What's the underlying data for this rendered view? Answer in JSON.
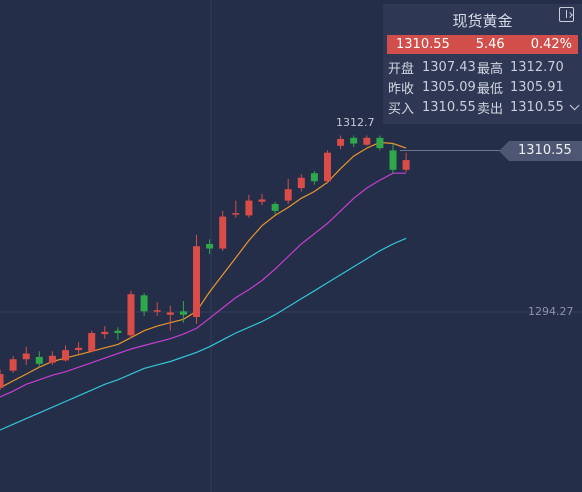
{
  "panel": {
    "title": "现货黄金",
    "price": "1310.55",
    "change": "5.46",
    "change_pct": "0.42%",
    "rows": [
      {
        "l1": "开盘",
        "v1": "1307.43",
        "l2": "最高",
        "v2": "1312.70"
      },
      {
        "l1": "昨收",
        "v1": "1305.09",
        "l2": "最低",
        "v2": "1305.91"
      },
      {
        "l1": "买入",
        "v1": "1310.55",
        "l2": "卖出",
        "v2": "1310.55"
      }
    ]
  },
  "price_tag": "1310.55",
  "axis_label": "1294.27",
  "high_label": "1312.7",
  "colors": {
    "background": "#252e48",
    "up": "#d94c47",
    "down": "#2ea84a",
    "ma_short": "#e8952f",
    "ma_mid": "#c63ed1",
    "ma_long": "#33c4d8",
    "grid": "#323c5a"
  },
  "chart_data": {
    "type": "candlestick",
    "title": "",
    "ylim": [
      1286.9,
      1314.5
    ],
    "y_tick": 1294.27,
    "current_price": 1310.55,
    "high_marker": 1312.7,
    "candles": [
      {
        "o": 1290.6,
        "c": 1291.8,
        "h": 1292.2,
        "l": 1290.4
      },
      {
        "o": 1292.1,
        "c": 1293.1,
        "h": 1293.4,
        "l": 1291.9
      },
      {
        "o": 1293.1,
        "c": 1293.6,
        "h": 1294.2,
        "l": 1292.6
      },
      {
        "o": 1293.3,
        "c": 1292.7,
        "h": 1293.8,
        "l": 1292.4
      },
      {
        "o": 1292.8,
        "c": 1293.4,
        "h": 1293.8,
        "l": 1292.6
      },
      {
        "o": 1293.0,
        "c": 1293.9,
        "h": 1294.3,
        "l": 1292.9
      },
      {
        "o": 1293.9,
        "c": 1294.1,
        "h": 1294.6,
        "l": 1293.6
      },
      {
        "o": 1293.8,
        "c": 1295.4,
        "h": 1295.6,
        "l": 1293.7
      },
      {
        "o": 1295.3,
        "c": 1295.5,
        "h": 1296.0,
        "l": 1294.9
      },
      {
        "o": 1295.6,
        "c": 1295.4,
        "h": 1295.9,
        "l": 1294.8
      },
      {
        "o": 1295.2,
        "c": 1298.8,
        "h": 1299.1,
        "l": 1295.0
      },
      {
        "o": 1298.7,
        "c": 1297.3,
        "h": 1298.9,
        "l": 1296.9
      },
      {
        "o": 1297.3,
        "c": 1297.4,
        "h": 1298.1,
        "l": 1296.9
      },
      {
        "o": 1297.0,
        "c": 1297.2,
        "h": 1297.8,
        "l": 1295.6
      },
      {
        "o": 1297.3,
        "c": 1297.0,
        "h": 1298.2,
        "l": 1296.3
      },
      {
        "o": 1296.8,
        "c": 1303.0,
        "h": 1304.0,
        "l": 1296.2
      },
      {
        "o": 1303.2,
        "c": 1302.8,
        "h": 1303.6,
        "l": 1302.3
      },
      {
        "o": 1302.8,
        "c": 1305.6,
        "h": 1306.1,
        "l": 1302.6
      },
      {
        "o": 1305.8,
        "c": 1305.9,
        "h": 1307.0,
        "l": 1305.5
      },
      {
        "o": 1305.7,
        "c": 1307.0,
        "h": 1307.5,
        "l": 1305.5
      },
      {
        "o": 1306.9,
        "c": 1307.1,
        "h": 1307.6,
        "l": 1306.6
      },
      {
        "o": 1306.7,
        "c": 1306.1,
        "h": 1306.9,
        "l": 1305.8
      },
      {
        "o": 1307.0,
        "c": 1308.0,
        "h": 1308.9,
        "l": 1306.7
      },
      {
        "o": 1308.1,
        "c": 1309.0,
        "h": 1309.3,
        "l": 1307.8
      },
      {
        "o": 1309.4,
        "c": 1308.7,
        "h": 1309.6,
        "l": 1308.4
      },
      {
        "o": 1308.7,
        "c": 1311.2,
        "h": 1311.4,
        "l": 1308.5
      },
      {
        "o": 1311.8,
        "c": 1312.4,
        "h": 1312.7,
        "l": 1311.5
      },
      {
        "o": 1312.5,
        "c": 1312.0,
        "h": 1312.7,
        "l": 1311.7
      },
      {
        "o": 1311.9,
        "c": 1312.5,
        "h": 1312.7,
        "l": 1311.8
      },
      {
        "o": 1312.5,
        "c": 1311.6,
        "h": 1312.7,
        "l": 1311.4
      },
      {
        "o": 1311.4,
        "c": 1309.7,
        "h": 1312.0,
        "l": 1309.4
      },
      {
        "o": 1309.7,
        "c": 1310.55,
        "h": 1311.2,
        "l": 1309.5
      }
    ],
    "ma_short": [
      1290.6,
      1291.2,
      1291.8,
      1292.4,
      1292.9,
      1293.2,
      1293.5,
      1293.8,
      1294.1,
      1294.4,
      1295.0,
      1295.6,
      1296.0,
      1296.3,
      1296.6,
      1297.3,
      1299.0,
      1300.5,
      1302.0,
      1303.5,
      1304.8,
      1305.7,
      1306.4,
      1307.2,
      1307.8,
      1308.6,
      1309.8,
      1310.9,
      1311.6,
      1312.1,
      1312.0,
      1311.6
    ],
    "ma_mid": [
      1289.8,
      1290.3,
      1290.9,
      1291.3,
      1291.7,
      1292.0,
      1292.4,
      1292.8,
      1293.2,
      1293.6,
      1294.0,
      1294.3,
      1294.6,
      1294.9,
      1295.3,
      1295.8,
      1296.7,
      1297.6,
      1298.5,
      1299.2,
      1300.0,
      1301.0,
      1302.1,
      1303.2,
      1304.1,
      1305.0,
      1306.1,
      1307.2,
      1308.1,
      1308.8,
      1309.4,
      1309.4
    ],
    "ma_long": [
      1286.9,
      1287.4,
      1287.9,
      1288.4,
      1288.9,
      1289.4,
      1289.9,
      1290.4,
      1290.9,
      1291.3,
      1291.8,
      1292.3,
      1292.6,
      1292.9,
      1293.3,
      1293.7,
      1294.2,
      1294.8,
      1295.4,
      1295.9,
      1296.4,
      1297.0,
      1297.7,
      1298.4,
      1299.1,
      1299.8,
      1300.5,
      1301.2,
      1301.9,
      1302.6,
      1303.2,
      1303.7
    ]
  }
}
